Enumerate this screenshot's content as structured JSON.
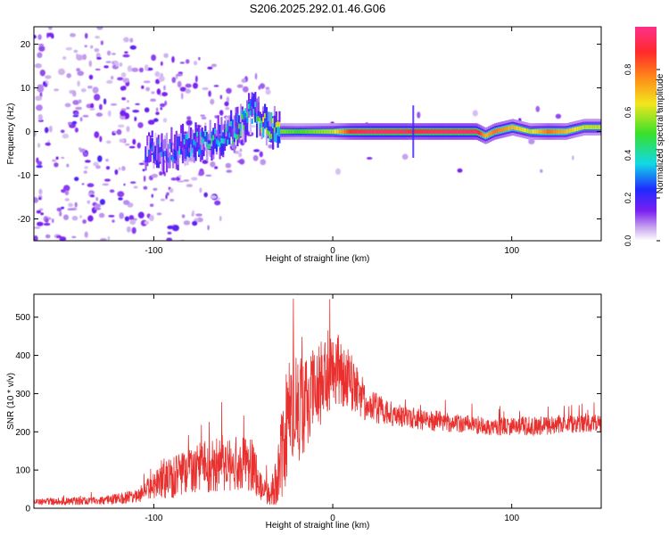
{
  "figure": {
    "title": "S206.2025.292.01.46.G06"
  },
  "chart_data": [
    {
      "type": "heatmap",
      "xlabel": "Height of straight line (km)",
      "ylabel": "Frequency (Hz)",
      "xlim": [
        -167,
        150
      ],
      "ylim": [
        -25,
        24
      ],
      "xticks": [
        -100,
        0,
        100
      ],
      "yticks": [
        -20,
        -10,
        0,
        10,
        20
      ],
      "grid": false,
      "colorbar": {
        "label": "Normalized spectral amplitude",
        "range": [
          0,
          1
        ],
        "ticks": [
          0.0,
          0.2,
          0.4,
          0.6,
          0.8
        ],
        "colormap": "rainbow (purple-blue-cyan-green-yellow-orange-red-magenta)"
      },
      "ridge": {
        "x": [
          -100,
          -90,
          -80,
          -70,
          -60,
          -50,
          -45,
          -40,
          -30,
          -20,
          -10,
          0,
          10,
          20,
          40,
          45,
          60,
          80,
          85,
          90,
          100,
          110,
          120,
          130,
          140,
          150
        ],
        "frequency": [
          -5,
          -4,
          -3,
          -2,
          -1,
          2,
          5,
          2,
          0,
          0,
          0,
          0,
          0,
          0,
          0,
          0,
          0,
          0,
          -1,
          0,
          1,
          0,
          0,
          0,
          1,
          1
        ],
        "amplitude": [
          0.15,
          0.2,
          0.25,
          0.3,
          0.3,
          0.4,
          0.3,
          0.5,
          0.55,
          0.5,
          0.55,
          0.6,
          0.9,
          0.95,
          0.95,
          0.9,
          0.95,
          0.95,
          0.7,
          0.8,
          0.7,
          0.6,
          0.8,
          0.7,
          0.6,
          0.6
        ]
      },
      "colors": {
        "low": "#c9a8ee",
        "mid_low": "#7a1ff0",
        "blue": "#1f2bff",
        "cyan": "#11d9e6",
        "green": "#38e02b",
        "yellow": "#f2e61d",
        "red": "#ff2a2a",
        "peak": "#ff3d8e"
      }
    },
    {
      "type": "line",
      "xlabel": "Height of straight line (km)",
      "ylabel": "SNR (10 * v/v)",
      "xlim": [
        -167,
        150
      ],
      "ylim": [
        0,
        560
      ],
      "xticks": [
        -100,
        0,
        100
      ],
      "yticks": [
        0,
        100,
        200,
        300,
        400,
        500
      ],
      "grid": false,
      "series": [
        {
          "color": "#e8302e",
          "x": [
            -167,
            -150,
            -130,
            -110,
            -100,
            -90,
            -80,
            -70,
            -60,
            -50,
            -45,
            -40,
            -35,
            -30,
            -27,
            -25,
            -20,
            -15,
            -10,
            -5,
            0,
            5,
            10,
            15,
            20,
            30,
            40,
            50,
            60,
            70,
            80,
            90,
            100,
            110,
            120,
            130,
            140,
            150
          ],
          "y": [
            18,
            18,
            20,
            30,
            60,
            80,
            100,
            110,
            120,
            115,
            110,
            60,
            30,
            100,
            200,
            220,
            250,
            280,
            300,
            340,
            380,
            350,
            330,
            300,
            270,
            250,
            240,
            232,
            228,
            222,
            218,
            215,
            215,
            215,
            217,
            220,
            222,
            225
          ],
          "spread": [
            8,
            10,
            10,
            18,
            35,
            55,
            60,
            70,
            75,
            70,
            70,
            40,
            25,
            90,
            160,
            170,
            150,
            130,
            120,
            110,
            110,
            90,
            80,
            60,
            45,
            35,
            30,
            28,
            26,
            25,
            25,
            25,
            25,
            25,
            25,
            25,
            25,
            25
          ]
        }
      ]
    }
  ]
}
